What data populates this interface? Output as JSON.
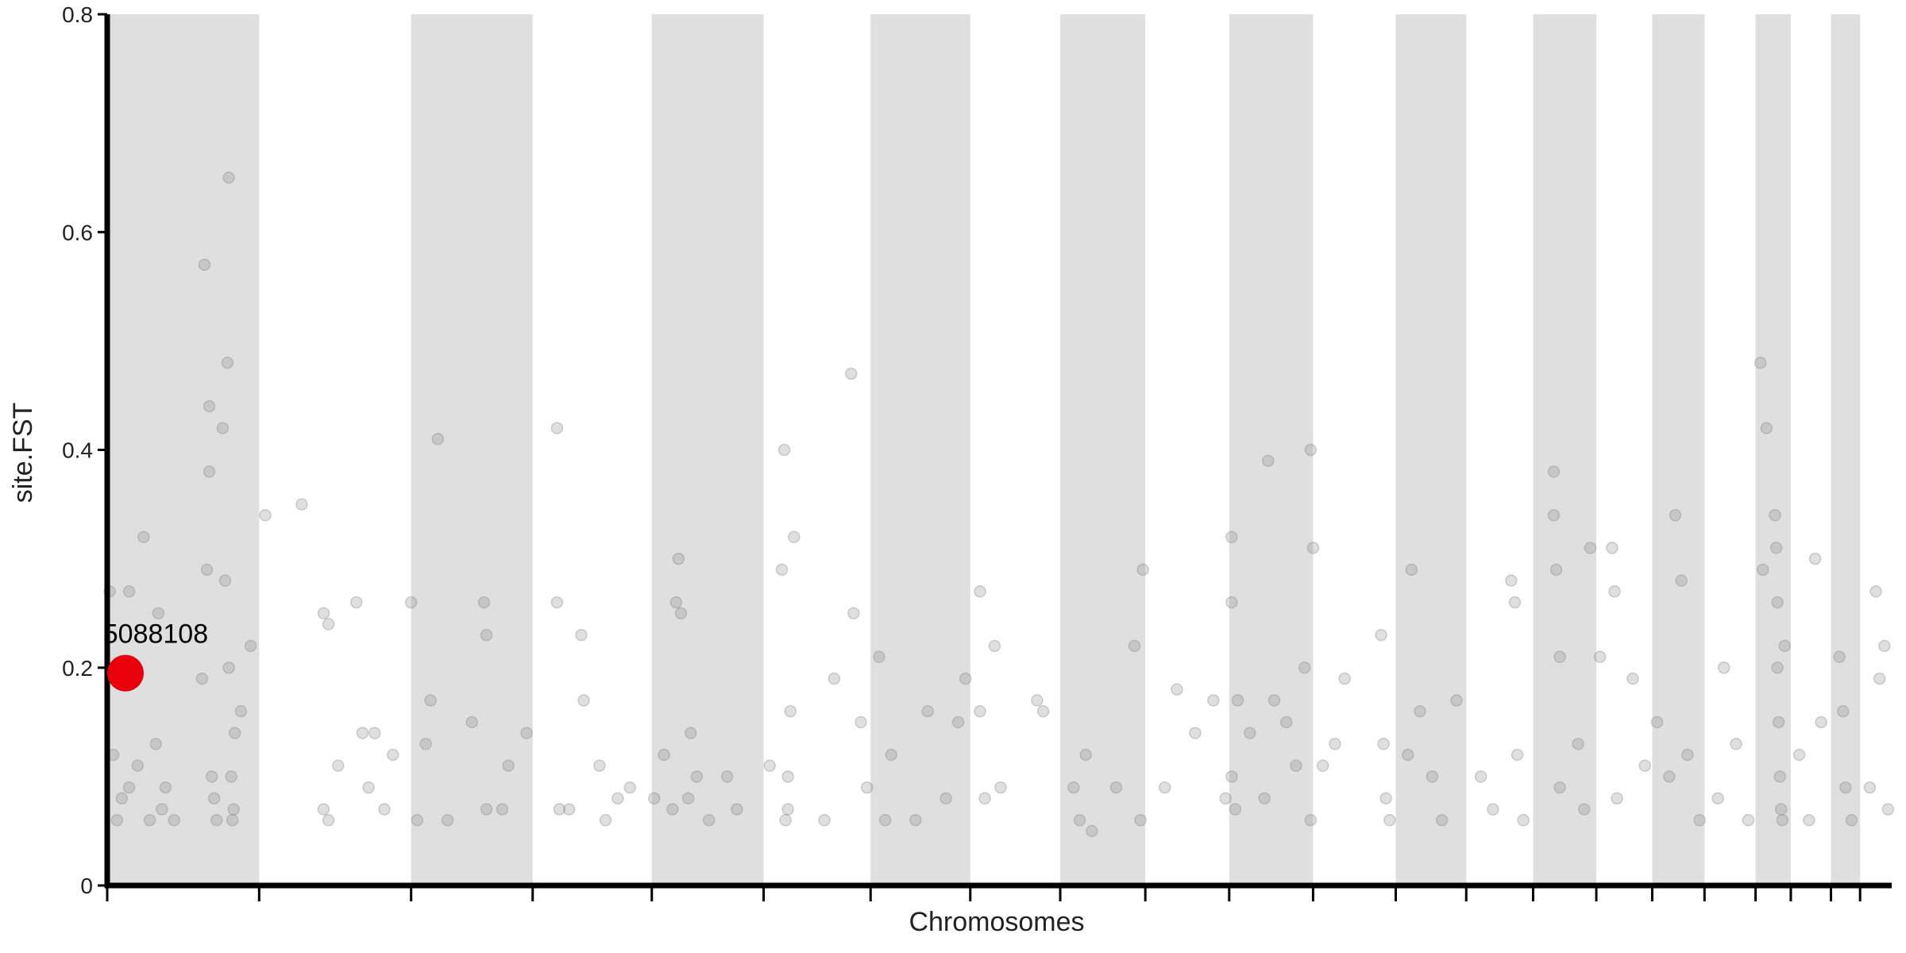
{
  "chart_data": {
    "type": "scatter",
    "ylabel": "site.FST",
    "xlabel": "Chromosomes",
    "xlim": [
      0,
      1468
    ],
    "ylim": [
      0,
      0.8
    ],
    "xticks": [
      0,
      125,
      250,
      350,
      448,
      540,
      628,
      710,
      784,
      854,
      923,
      992,
      1060,
      1118,
      1173,
      1225,
      1271,
      1314,
      1356,
      1385,
      1418,
      1442
    ],
    "yticks": [
      0.0,
      0.2,
      0.4,
      0.6,
      0.8
    ],
    "band_color": "#dfdfdf",
    "series": [
      {
        "color": "#808080",
        "x": [
          2,
          5,
          8,
          12,
          18,
          18,
          25,
          30,
          35,
          40,
          42,
          45,
          48,
          55,
          78,
          80,
          82,
          84,
          84,
          86,
          88,
          95,
          97,
          99,
          100,
          100,
          102,
          104,
          105,
          110,
          118,
          90,
          103,
          130,
          160,
          178,
          178,
          182,
          182,
          190,
          205,
          210,
          215,
          220,
          228,
          235,
          250,
          255,
          262,
          266,
          272,
          280,
          300,
          310,
          312,
          312,
          325,
          330,
          345,
          370,
          370,
          372,
          380,
          390,
          392,
          405,
          410,
          420,
          430,
          450,
          458,
          465,
          468,
          470,
          472,
          478,
          480,
          485,
          495,
          510,
          518,
          545,
          555,
          557,
          560,
          562,
          565,
          560,
          558,
          590,
          598,
          612,
          614,
          620,
          625,
          635,
          640,
          645,
          665,
          675,
          690,
          700,
          706,
          718,
          718,
          722,
          730,
          735,
          765,
          770,
          795,
          800,
          805,
          810,
          830,
          845,
          852,
          850,
          870,
          880,
          895,
          910,
          920,
          925,
          925,
          925,
          928,
          930,
          940,
          952,
          955,
          960,
          970,
          978,
          985,
          990,
          992,
          990,
          1000,
          1010,
          1018,
          1048,
          1050,
          1052,
          1055,
          1070,
          1073,
          1080,
          1090,
          1098,
          1110,
          1130,
          1140,
          1155,
          1158,
          1160,
          1165,
          1190,
          1190,
          1192,
          1195,
          1195,
          1210,
          1215,
          1220,
          1228,
          1238,
          1240,
          1242,
          1255,
          1265,
          1275,
          1285,
          1290,
          1295,
          1300,
          1310,
          1325,
          1330,
          1340,
          1350,
          1360,
          1362,
          1365,
          1372,
          1373,
          1374,
          1374,
          1375,
          1376,
          1377,
          1378,
          1380,
          1392,
          1400,
          1405,
          1410,
          1425,
          1428,
          1430,
          1435,
          1450,
          1455,
          1458,
          1462,
          1465
        ],
        "values": [
          0.27,
          0.12,
          0.06,
          0.08,
          0.27,
          0.09,
          0.11,
          0.32,
          0.06,
          0.13,
          0.25,
          0.07,
          0.09,
          0.06,
          0.19,
          0.57,
          0.29,
          0.44,
          0.38,
          0.1,
          0.08,
          0.42,
          0.28,
          0.48,
          0.65,
          0.2,
          0.1,
          0.07,
          0.14,
          0.16,
          0.22,
          0.06,
          0.06,
          0.34,
          0.35,
          0.25,
          0.07,
          0.24,
          0.06,
          0.11,
          0.26,
          0.14,
          0.09,
          0.14,
          0.07,
          0.12,
          0.26,
          0.06,
          0.13,
          0.17,
          0.41,
          0.06,
          0.15,
          0.26,
          0.23,
          0.07,
          0.07,
          0.11,
          0.14,
          0.42,
          0.26,
          0.07,
          0.07,
          0.23,
          0.17,
          0.11,
          0.06,
          0.08,
          0.09,
          0.08,
          0.12,
          0.07,
          0.26,
          0.3,
          0.25,
          0.08,
          0.14,
          0.1,
          0.06,
          0.1,
          0.07,
          0.11,
          0.29,
          0.4,
          0.1,
          0.16,
          0.32,
          0.07,
          0.06,
          0.06,
          0.19,
          0.47,
          0.25,
          0.15,
          0.09,
          0.21,
          0.06,
          0.12,
          0.06,
          0.16,
          0.08,
          0.15,
          0.19,
          0.27,
          0.16,
          0.08,
          0.22,
          0.09,
          0.17,
          0.16,
          0.09,
          0.06,
          0.12,
          0.05,
          0.09,
          0.22,
          0.29,
          0.06,
          0.09,
          0.18,
          0.14,
          0.17,
          0.08,
          0.32,
          0.26,
          0.1,
          0.07,
          0.17,
          0.14,
          0.08,
          0.39,
          0.17,
          0.15,
          0.11,
          0.2,
          0.4,
          0.31,
          0.06,
          0.11,
          0.13,
          0.19,
          0.23,
          0.13,
          0.08,
          0.06,
          0.12,
          0.29,
          0.16,
          0.1,
          0.06,
          0.17,
          0.1,
          0.07,
          0.28,
          0.26,
          0.12,
          0.06,
          0.38,
          0.34,
          0.29,
          0.21,
          0.09,
          0.13,
          0.07,
          0.31,
          0.21,
          0.31,
          0.27,
          0.08,
          0.19,
          0.11,
          0.15,
          0.1,
          0.34,
          0.28,
          0.12,
          0.06,
          0.08,
          0.2,
          0.13,
          0.06,
          0.48,
          0.29,
          0.42,
          0.34,
          0.31,
          0.26,
          0.2,
          0.15,
          0.1,
          0.07,
          0.06,
          0.22,
          0.12,
          0.06,
          0.3,
          0.15,
          0.21,
          0.16,
          0.09,
          0.06,
          0.09,
          0.27,
          0.19,
          0.22,
          0.07
        ]
      }
    ],
    "highlight": {
      "x": 15,
      "value": 0.195,
      "label": "5088108",
      "color": "#e8000b"
    }
  }
}
